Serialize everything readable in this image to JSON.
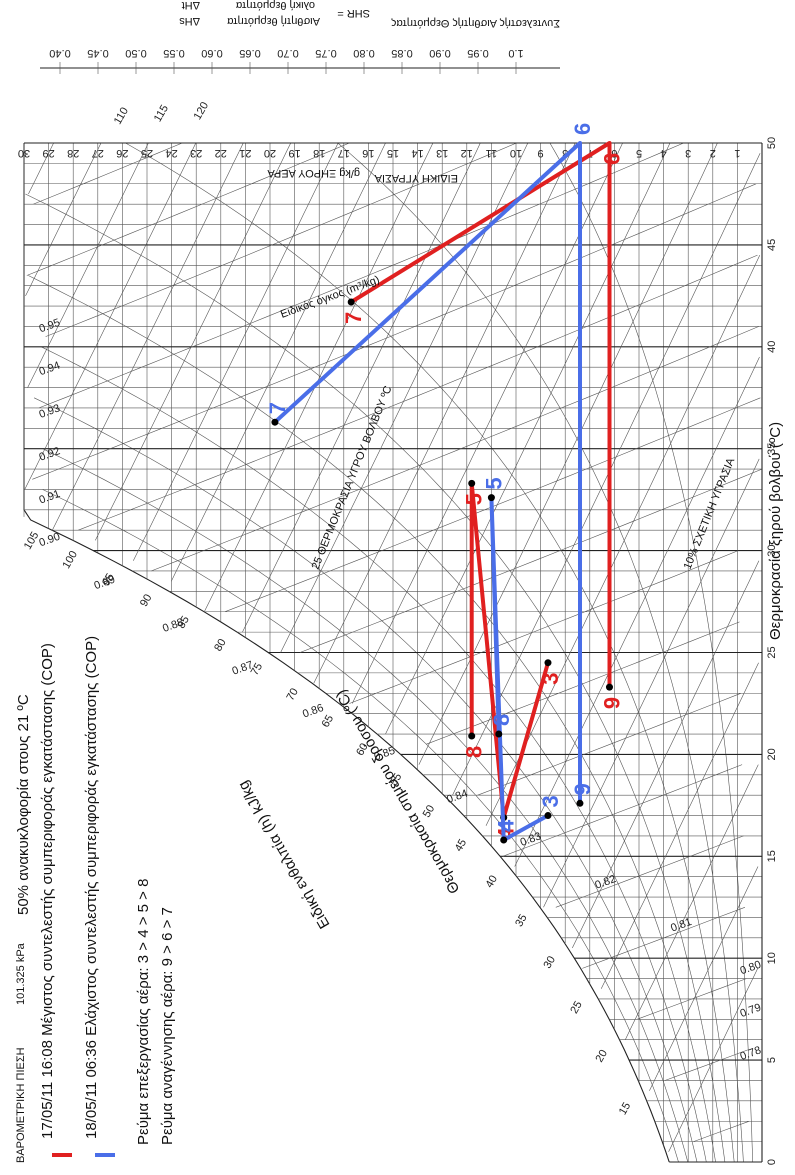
{
  "chart_data": {
    "type": "psychrometric",
    "rotation": "chart printed rotated 90 degrees clockwise",
    "barometric_label": "ΒΑΡΟΜΕΤΡΙΚΗ ΠΙΕΣΗ",
    "barometric_value": "101.325 kPa",
    "occupancy_note": "50% ανακυκλοφορία στους 21 ºC",
    "xlabel": "Θερμοκρασία ξηρού βολβού (ºC)",
    "x_ticks": [
      "0",
      "5",
      "10",
      "15",
      "20",
      "25",
      "30",
      "35",
      "40",
      "45",
      "50"
    ],
    "xlim": [
      0,
      50
    ],
    "y_ticks": [
      "1",
      "2",
      "3",
      "4",
      "5",
      "6",
      "7",
      "8",
      "9",
      "10",
      "11",
      "12",
      "13",
      "14",
      "15",
      "16",
      "17",
      "18",
      "19",
      "20",
      "21",
      "22",
      "23",
      "24",
      "25",
      "26",
      "27",
      "28",
      "29",
      "30"
    ],
    "ylim": [
      0,
      30
    ],
    "ylabel_right": "ΕΙΔΙΚΗ ΥΓΡΑΣΙΑ",
    "ylabel_right_unit": "g/kg ΞΗΡΟΥ ΑΕΡΑ",
    "enthalpy_label": "Ειδική ενθαλπία (h) kJ/kg",
    "enthalpy_ticks": [
      "15",
      "20",
      "25",
      "30",
      "35",
      "40",
      "45",
      "50",
      "55",
      "60",
      "65",
      "70",
      "75",
      "80",
      "85",
      "90",
      "95",
      "100",
      "105",
      "110",
      "115",
      "120"
    ],
    "dewpoint_label": "Θερμοκρασία σημείου δρόσου (ºC)",
    "wetbulb_label": "25 ΘΕΡΜΟΚΡΑΣΙΑ ΥΓΡΟΥ ΒΟΛΒΟΥ ºC",
    "specific_volume_label": "Ειδικός όγκος (m³/kg)",
    "specific_volume_ticks": [
      "0.78",
      "0.79",
      "0.80",
      "0.81",
      "0.82",
      "0.83",
      "0.84",
      "0.85",
      "0.86",
      "0.87",
      "0.88",
      "0.89",
      "0.90",
      "0.91",
      "0.92",
      "0.93",
      "0.94",
      "0.95"
    ],
    "rh_label": "10% ΣΧΕΤΙΚΗ ΥΓΡΑΣΙΑ",
    "rh_curves": [
      10,
      20,
      30,
      40,
      50,
      60,
      70,
      80,
      90,
      100
    ],
    "shr_header": "Συντελεστής Αισθητής Θερμότητας",
    "shr_formula_left": "SHR =",
    "shr_numerator": "Αισθητή θερμότητα",
    "shr_denominator": "ολική θερμότητα",
    "shr_ratio_num": "ΔHs",
    "shr_ratio_den": "ΔHt",
    "shr_ticks": [
      "0.40",
      "0.45",
      "0.50",
      "0.55",
      "0.60",
      "0.65",
      "0.70",
      "0.75",
      "0.80",
      "0.85",
      "0.90",
      "0.95",
      "1.0"
    ],
    "series": [
      {
        "legend": "17/05/11 16:08 Μέγιστος συντελεστής συμπεριφοράς εγκατάστασης (COP)",
        "color": "#e02020",
        "points": [
          {
            "label": "3",
            "x": 24.5,
            "y": 8.7
          },
          {
            "label": "4",
            "x": 16.9,
            "y": 10.5
          },
          {
            "label": "5",
            "x": 33.3,
            "y": 11.8
          },
          {
            "label": "8",
            "x": 20.9,
            "y": 11.8
          },
          {
            "label": "9",
            "x": 23.3,
            "y": 6.2
          },
          {
            "label": "6",
            "x": 50,
            "y": 6.2
          },
          {
            "label": "7",
            "x": 42.2,
            "y": 16.7
          }
        ]
      },
      {
        "legend": "18/05/11 06:36 Ελάχιστος συντελεστής συμπεριφοράς εγκατάστασης (COP)",
        "color": "#4a6ee8",
        "points": [
          {
            "label": "3",
            "x": 17.0,
            "y": 8.7
          },
          {
            "label": "4",
            "x": 15.8,
            "y": 10.5
          },
          {
            "label": "5",
            "x": 32.6,
            "y": 11.0
          },
          {
            "label": "8",
            "x": 21.0,
            "y": 10.7
          },
          {
            "label": "9",
            "x": 17.6,
            "y": 7.4
          },
          {
            "label": "6",
            "x": 50,
            "y": 7.4
          },
          {
            "label": "7",
            "x": 36.3,
            "y": 19.8
          }
        ]
      }
    ],
    "process_air": "Ρεύμα επεξεργασίας αέρα: 3 > 4 > 5 > 8",
    "regen_air": "Ρεύμα αναγέννησης αέρα: 9 > 6 > 7"
  }
}
